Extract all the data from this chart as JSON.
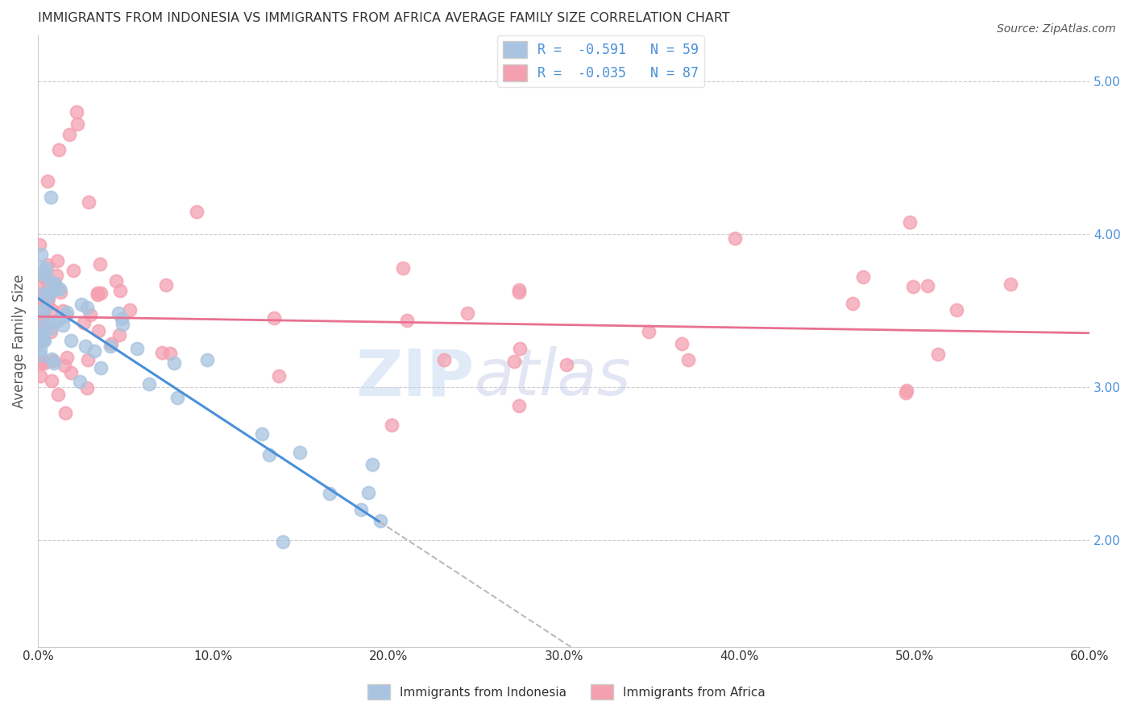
{
  "title": "IMMIGRANTS FROM INDONESIA VS IMMIGRANTS FROM AFRICA AVERAGE FAMILY SIZE CORRELATION CHART",
  "source": "Source: ZipAtlas.com",
  "ylabel": "Average Family Size",
  "yticks_right": [
    2.0,
    3.0,
    4.0,
    5.0
  ],
  "xmin": 0.0,
  "xmax": 0.6,
  "ymin": 1.3,
  "ymax": 5.3,
  "legend_R_indonesia": "R =  -0.591",
  "legend_N_indonesia": "N = 59",
  "legend_R_africa": "R =  -0.035",
  "legend_N_africa": "N = 87",
  "color_indonesia": "#a8c4e0",
  "color_africa": "#f4a0b0",
  "color_line_indonesia": "#4a90d9",
  "color_line_africa": "#e87090",
  "watermark_zip": "ZIP",
  "watermark_atlas": "atlas",
  "background_color": "#ffffff",
  "grid_color": "#cccccc"
}
